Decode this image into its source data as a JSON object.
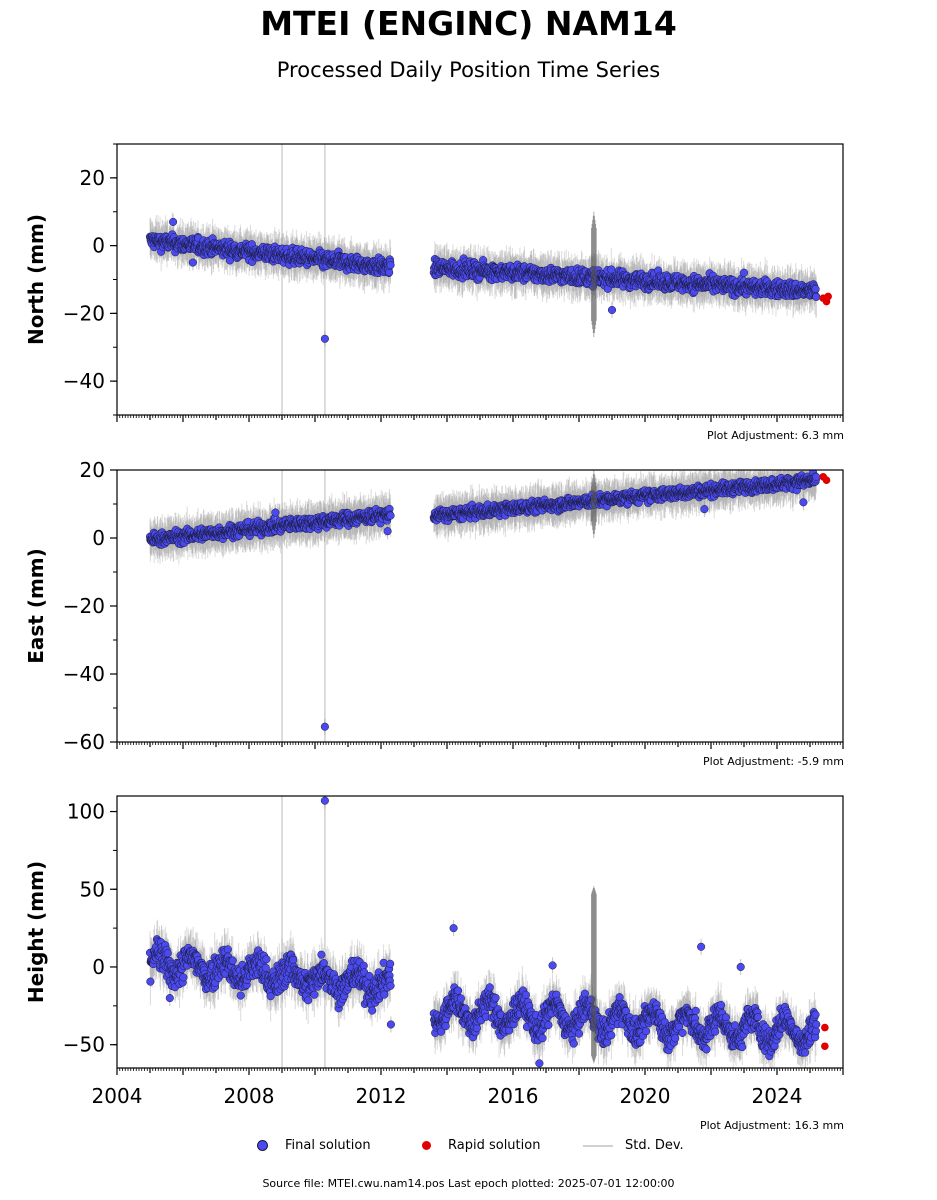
{
  "header": {
    "title": "MTEI (ENGINC) NAM14",
    "subtitle": "Processed Daily Position Time Series"
  },
  "footer": {
    "source": "Source file: MTEI.cwu.nam14.pos  Last epoch plotted: 2025-07-01 12:00:00"
  },
  "legend": {
    "final": "Final solution",
    "rapid": "Rapid solution",
    "stddev": "Std. Dev."
  },
  "colors": {
    "final": "#4a4aee",
    "rapid": "#e00000",
    "stddev": "#c8c8c8",
    "edge": "#1a1a3a"
  },
  "chart_data": [
    {
      "type": "scatter",
      "ylabel": "North (mm)",
      "adjustment": "Plot Adjustment: 6.3 mm",
      "xlim": [
        2004,
        2026
      ],
      "ylim": [
        -50,
        30
      ],
      "yticks": [
        20,
        0,
        -20,
        -40
      ],
      "ytick_labels": [
        "20",
        "0",
        "−20",
        "−40"
      ],
      "series": [
        {
          "segments": [
            {
              "from": 2005.0,
              "to": 2012.3,
              "start": 1.5,
              "end": -6.5,
              "scatter": 1.6
            },
            {
              "from": 2013.6,
              "to": 2025.2,
              "start": -6.5,
              "end": -13.5,
              "scatter": 1.6
            }
          ]
        }
      ],
      "outliers": [
        [
          2010.3,
          -27.5
        ],
        [
          2005.7,
          7
        ],
        [
          2019.0,
          -19
        ],
        [
          2006.3,
          -5
        ],
        [
          2023.0,
          -8
        ]
      ],
      "rapid": [
        [
          2025.4,
          -15.5
        ],
        [
          2025.5,
          -16.5
        ],
        [
          2025.55,
          -15.0
        ]
      ],
      "vlines": [
        2009.0,
        2010.3
      ],
      "burst": {
        "x": 2018.45,
        "ymin": -27,
        "ymax": 10
      }
    },
    {
      "type": "scatter",
      "ylabel": "East (mm)",
      "adjustment": "Plot Adjustment: -5.9 mm",
      "xlim": [
        2004,
        2026
      ],
      "ylim": [
        -60,
        20
      ],
      "yticks": [
        20,
        0,
        -20,
        -40,
        -60
      ],
      "ytick_labels": [
        "20",
        "0",
        "−20",
        "−40",
        "−60"
      ],
      "series": [
        {
          "segments": [
            {
              "from": 2005.0,
              "to": 2012.3,
              "start": -0.5,
              "end": 7.0,
              "scatter": 1.3
            },
            {
              "from": 2013.6,
              "to": 2025.2,
              "start": 6.5,
              "end": 17.0,
              "scatter": 1.2
            }
          ]
        }
      ],
      "outliers": [
        [
          2010.3,
          -55.5
        ],
        [
          2012.2,
          2.0
        ],
        [
          2008.8,
          7.5
        ],
        [
          2021.8,
          8.5
        ],
        [
          2024.8,
          10.5
        ]
      ],
      "rapid": [
        [
          2025.4,
          18.0
        ],
        [
          2025.5,
          17.0
        ]
      ],
      "vlines": [
        2009.0,
        2010.3
      ],
      "burst": {
        "x": 2018.45,
        "ymin": 0,
        "ymax": 20
      }
    },
    {
      "type": "scatter",
      "ylabel": "Height (mm)",
      "adjustment": "Plot Adjustment: 16.3 mm",
      "xlim": [
        2004,
        2026
      ],
      "ylim": [
        -65,
        110
      ],
      "yticks": [
        100,
        50,
        0,
        -50
      ],
      "ytick_labels": [
        "100",
        "50",
        "0",
        "−50"
      ],
      "xticks": [
        2004,
        2008,
        2012,
        2016,
        2020,
        2024
      ],
      "xtick_labels": [
        "2004",
        "2008",
        "2012",
        "2016",
        "2020",
        "2024"
      ],
      "series": [
        {
          "segments": [
            {
              "from": 2005.0,
              "to": 2012.3,
              "start": 3.0,
              "end": -12.0,
              "scatter": 7.0,
              "seasonal": 6.0
            },
            {
              "from": 2013.6,
              "to": 2025.2,
              "start": -28.0,
              "end": -42.0,
              "scatter": 6.0,
              "seasonal": 8.0
            }
          ]
        }
      ],
      "outliers": [
        [
          2010.3,
          107
        ],
        [
          2014.2,
          25
        ],
        [
          2017.2,
          1
        ],
        [
          2021.7,
          13
        ],
        [
          2022.9,
          0
        ],
        [
          2016.8,
          -62
        ],
        [
          2005.6,
          -20
        ],
        [
          2012.3,
          -37
        ]
      ],
      "rapid": [
        [
          2025.45,
          -39
        ],
        [
          2025.45,
          -51
        ]
      ],
      "vlines": [
        2009.0,
        2010.3
      ],
      "burst": {
        "x": 2018.45,
        "ymin": -62,
        "ymax": 52
      }
    }
  ]
}
